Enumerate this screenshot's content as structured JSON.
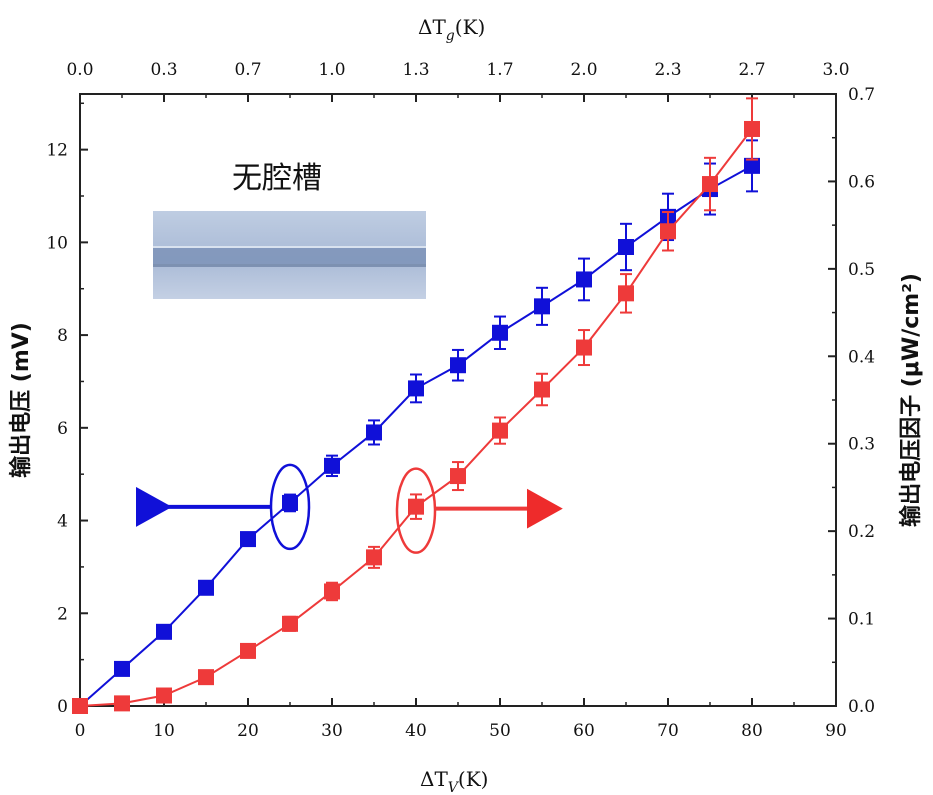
{
  "chart_data": {
    "type": "line",
    "title": "",
    "xlabel": "ΔT",
    "xlabel_sub": "V",
    "xlabel_unit": "(K)",
    "top_xlabel": "ΔT",
    "top_xlabel_sub": "g",
    "top_xlabel_unit": "(K)",
    "ylabel_left": "输出电压 (mV)",
    "ylabel_right": "输出电压因子 (μW/cm²)",
    "xlim": [
      0,
      90
    ],
    "ylim_left": [
      0,
      13.2
    ],
    "ylim_right": [
      0,
      0.7
    ],
    "x_ticks": [
      "0",
      "10",
      "20",
      "30",
      "40",
      "50",
      "60",
      "70",
      "80",
      "90"
    ],
    "top_x_ticks": [
      "0.0",
      "0.3",
      "0.7",
      "1.0",
      "1.3",
      "1.7",
      "2.0",
      "2.3",
      "2.7",
      "3.0"
    ],
    "y_left_ticks": [
      "0",
      "2",
      "4",
      "6",
      "8",
      "10",
      "12"
    ],
    "y_right_ticks": [
      "0.0",
      "0.1",
      "0.2",
      "0.3",
      "0.4",
      "0.5",
      "0.6",
      "0.7"
    ],
    "inset_label": "无腔槽",
    "series": [
      {
        "name": "输出电压",
        "axis": "left",
        "color": "#1010d8",
        "x": [
          0,
          5,
          10,
          15,
          20,
          25,
          30,
          35,
          40,
          45,
          50,
          55,
          60,
          65,
          70,
          75,
          80
        ],
        "values": [
          0.0,
          0.8,
          1.6,
          2.55,
          3.6,
          4.38,
          5.18,
          5.9,
          6.85,
          7.35,
          8.05,
          8.62,
          9.2,
          9.9,
          10.55,
          11.15,
          11.65
        ],
        "errors": [
          0,
          0.1,
          0.1,
          0.1,
          0.12,
          0.18,
          0.22,
          0.26,
          0.3,
          0.33,
          0.35,
          0.4,
          0.45,
          0.5,
          0.5,
          0.55,
          0.55
        ]
      },
      {
        "name": "输出电压因子",
        "axis": "right",
        "color": "#ee3a3a",
        "x": [
          0,
          5,
          10,
          15,
          20,
          25,
          30,
          35,
          40,
          45,
          50,
          55,
          60,
          65,
          70,
          75,
          80
        ],
        "values": [
          0.0,
          0.003,
          0.012,
          0.033,
          0.063,
          0.094,
          0.131,
          0.17,
          0.228,
          0.263,
          0.315,
          0.362,
          0.41,
          0.472,
          0.543,
          0.597,
          0.66
        ],
        "errors": [
          0,
          0.003,
          0.005,
          0.006,
          0.007,
          0.008,
          0.01,
          0.012,
          0.014,
          0.016,
          0.015,
          0.018,
          0.02,
          0.022,
          0.022,
          0.03,
          0.035
        ]
      }
    ],
    "annotations": [
      {
        "type": "ellipse-arrow",
        "series": "输出电压",
        "direction": "left"
      },
      {
        "type": "ellipse-arrow",
        "series": "输出电压因子",
        "direction": "right"
      }
    ]
  }
}
